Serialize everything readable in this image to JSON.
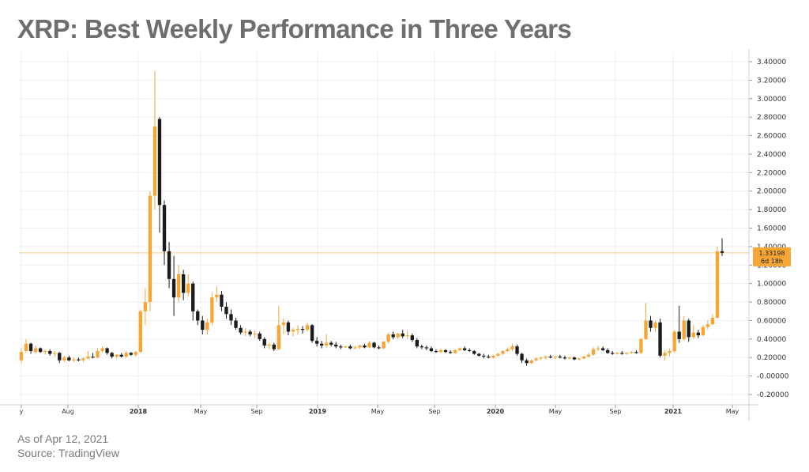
{
  "title": "XRP: Best Weekly Performance in Three Years",
  "footer": {
    "date_note": "As of Apr 12, 2021",
    "source_note": "Source: TradingView"
  },
  "colors": {
    "up": "#f7a535",
    "down": "#1b1b1b",
    "grid": "#efefef",
    "price_line": "#f7a535",
    "price_tag": "#f7a535",
    "title": "#6e6e6e"
  },
  "chart_data": {
    "type": "candlestick",
    "title": "XRP: Best Weekly Performance in Three Years",
    "timeframe": "weekly",
    "ylim": [
      -0.25,
      3.5
    ],
    "y_ticks": [
      "3.40000",
      "3.20000",
      "3.00000",
      "2.80000",
      "2.60000",
      "2.40000",
      "2.20000",
      "2.00000",
      "1.80000",
      "1.60000",
      "1.40000",
      "1.20000",
      "1.00000",
      "0.80000",
      "0.60000",
      "0.40000",
      "0.20000",
      "-0.00000",
      "-0.20000"
    ],
    "x_ticks": [
      {
        "label": "y",
        "bold": false
      },
      {
        "label": "Aug",
        "bold": false
      },
      {
        "label": "2018",
        "bold": true
      },
      {
        "label": "May",
        "bold": false
      },
      {
        "label": "Sep",
        "bold": false
      },
      {
        "label": "2019",
        "bold": true
      },
      {
        "label": "May",
        "bold": false
      },
      {
        "label": "Sep",
        "bold": false
      },
      {
        "label": "2020",
        "bold": true
      },
      {
        "label": "May",
        "bold": false
      },
      {
        "label": "Sep",
        "bold": false
      },
      {
        "label": "2021",
        "bold": true
      },
      {
        "label": "May",
        "bold": false
      }
    ],
    "last_price": {
      "value": 1.33198,
      "label": "1.33198",
      "countdown": "6d 18h"
    },
    "grid": true,
    "candles": [
      {
        "o": 0.17,
        "h": 0.3,
        "l": 0.14,
        "c": 0.26
      },
      {
        "o": 0.27,
        "h": 0.4,
        "l": 0.25,
        "c": 0.35
      },
      {
        "o": 0.35,
        "h": 0.36,
        "l": 0.24,
        "c": 0.27
      },
      {
        "o": 0.26,
        "h": 0.33,
        "l": 0.24,
        "c": 0.3
      },
      {
        "o": 0.3,
        "h": 0.31,
        "l": 0.25,
        "c": 0.26
      },
      {
        "o": 0.26,
        "h": 0.29,
        "l": 0.23,
        "c": 0.27
      },
      {
        "o": 0.27,
        "h": 0.29,
        "l": 0.22,
        "c": 0.24
      },
      {
        "o": 0.24,
        "h": 0.27,
        "l": 0.21,
        "c": 0.25
      },
      {
        "o": 0.25,
        "h": 0.26,
        "l": 0.14,
        "c": 0.17
      },
      {
        "o": 0.17,
        "h": 0.22,
        "l": 0.15,
        "c": 0.2
      },
      {
        "o": 0.2,
        "h": 0.22,
        "l": 0.16,
        "c": 0.17
      },
      {
        "o": 0.17,
        "h": 0.2,
        "l": 0.15,
        "c": 0.18
      },
      {
        "o": 0.18,
        "h": 0.2,
        "l": 0.16,
        "c": 0.17
      },
      {
        "o": 0.17,
        "h": 0.2,
        "l": 0.15,
        "c": 0.19
      },
      {
        "o": 0.19,
        "h": 0.27,
        "l": 0.18,
        "c": 0.21
      },
      {
        "o": 0.21,
        "h": 0.25,
        "l": 0.19,
        "c": 0.2
      },
      {
        "o": 0.2,
        "h": 0.3,
        "l": 0.19,
        "c": 0.27
      },
      {
        "o": 0.27,
        "h": 0.32,
        "l": 0.25,
        "c": 0.3
      },
      {
        "o": 0.3,
        "h": 0.31,
        "l": 0.23,
        "c": 0.25
      },
      {
        "o": 0.25,
        "h": 0.26,
        "l": 0.19,
        "c": 0.21
      },
      {
        "o": 0.21,
        "h": 0.24,
        "l": 0.19,
        "c": 0.23
      },
      {
        "o": 0.23,
        "h": 0.25,
        "l": 0.2,
        "c": 0.21
      },
      {
        "o": 0.21,
        "h": 0.27,
        "l": 0.2,
        "c": 0.25
      },
      {
        "o": 0.25,
        "h": 0.26,
        "l": 0.22,
        "c": 0.23
      },
      {
        "o": 0.23,
        "h": 0.27,
        "l": 0.21,
        "c": 0.26
      },
      {
        "o": 0.26,
        "h": 0.72,
        "l": 0.25,
        "c": 0.7
      },
      {
        "o": 0.7,
        "h": 0.95,
        "l": 0.55,
        "c": 0.8
      },
      {
        "o": 0.8,
        "h": 2.0,
        "l": 0.7,
        "c": 1.95
      },
      {
        "o": 1.95,
        "h": 3.3,
        "l": 1.8,
        "c": 2.7
      },
      {
        "o": 2.78,
        "h": 2.8,
        "l": 1.55,
        "c": 1.85
      },
      {
        "o": 1.85,
        "h": 1.9,
        "l": 1.2,
        "c": 1.35
      },
      {
        "o": 1.35,
        "h": 1.45,
        "l": 0.95,
        "c": 1.05
      },
      {
        "o": 1.05,
        "h": 1.3,
        "l": 0.65,
        "c": 0.85
      },
      {
        "o": 0.85,
        "h": 1.2,
        "l": 0.8,
        "c": 1.1
      },
      {
        "o": 1.1,
        "h": 1.15,
        "l": 0.82,
        "c": 0.9
      },
      {
        "o": 0.9,
        "h": 1.1,
        "l": 0.86,
        "c": 1.0
      },
      {
        "o": 1.0,
        "h": 1.02,
        "l": 0.6,
        "c": 0.7
      },
      {
        "o": 0.7,
        "h": 0.72,
        "l": 0.55,
        "c": 0.6
      },
      {
        "o": 0.6,
        "h": 0.65,
        "l": 0.45,
        "c": 0.5
      },
      {
        "o": 0.5,
        "h": 0.62,
        "l": 0.45,
        "c": 0.58
      },
      {
        "o": 0.58,
        "h": 0.9,
        "l": 0.55,
        "c": 0.85
      },
      {
        "o": 0.85,
        "h": 0.97,
        "l": 0.8,
        "c": 0.88
      },
      {
        "o": 0.88,
        "h": 0.92,
        "l": 0.7,
        "c": 0.75
      },
      {
        "o": 0.75,
        "h": 0.8,
        "l": 0.62,
        "c": 0.67
      },
      {
        "o": 0.67,
        "h": 0.72,
        "l": 0.55,
        "c": 0.6
      },
      {
        "o": 0.6,
        "h": 0.63,
        "l": 0.5,
        "c": 0.52
      },
      {
        "o": 0.52,
        "h": 0.55,
        "l": 0.45,
        "c": 0.47
      },
      {
        "o": 0.47,
        "h": 0.52,
        "l": 0.43,
        "c": 0.48
      },
      {
        "o": 0.48,
        "h": 0.5,
        "l": 0.43,
        "c": 0.45
      },
      {
        "o": 0.45,
        "h": 0.49,
        "l": 0.41,
        "c": 0.46
      },
      {
        "o": 0.46,
        "h": 0.48,
        "l": 0.38,
        "c": 0.4
      },
      {
        "o": 0.4,
        "h": 0.42,
        "l": 0.3,
        "c": 0.33
      },
      {
        "o": 0.33,
        "h": 0.36,
        "l": 0.29,
        "c": 0.34
      },
      {
        "o": 0.34,
        "h": 0.36,
        "l": 0.27,
        "c": 0.29
      },
      {
        "o": 0.29,
        "h": 0.76,
        "l": 0.28,
        "c": 0.55
      },
      {
        "o": 0.55,
        "h": 0.62,
        "l": 0.45,
        "c": 0.58
      },
      {
        "o": 0.58,
        "h": 0.6,
        "l": 0.44,
        "c": 0.48
      },
      {
        "o": 0.48,
        "h": 0.52,
        "l": 0.43,
        "c": 0.5
      },
      {
        "o": 0.5,
        "h": 0.55,
        "l": 0.45,
        "c": 0.51
      },
      {
        "o": 0.51,
        "h": 0.54,
        "l": 0.46,
        "c": 0.5
      },
      {
        "o": 0.5,
        "h": 0.58,
        "l": 0.48,
        "c": 0.55
      },
      {
        "o": 0.55,
        "h": 0.56,
        "l": 0.36,
        "c": 0.38
      },
      {
        "o": 0.38,
        "h": 0.42,
        "l": 0.32,
        "c": 0.35
      },
      {
        "o": 0.35,
        "h": 0.38,
        "l": 0.3,
        "c": 0.33
      },
      {
        "o": 0.33,
        "h": 0.45,
        "l": 0.3,
        "c": 0.36
      },
      {
        "o": 0.36,
        "h": 0.38,
        "l": 0.32,
        "c": 0.34
      },
      {
        "o": 0.34,
        "h": 0.37,
        "l": 0.3,
        "c": 0.32
      },
      {
        "o": 0.32,
        "h": 0.34,
        "l": 0.29,
        "c": 0.31
      },
      {
        "o": 0.31,
        "h": 0.33,
        "l": 0.3,
        "c": 0.32
      },
      {
        "o": 0.32,
        "h": 0.34,
        "l": 0.29,
        "c": 0.3
      },
      {
        "o": 0.3,
        "h": 0.33,
        "l": 0.29,
        "c": 0.31
      },
      {
        "o": 0.31,
        "h": 0.34,
        "l": 0.29,
        "c": 0.33
      },
      {
        "o": 0.33,
        "h": 0.35,
        "l": 0.3,
        "c": 0.31
      },
      {
        "o": 0.31,
        "h": 0.38,
        "l": 0.3,
        "c": 0.36
      },
      {
        "o": 0.36,
        "h": 0.37,
        "l": 0.3,
        "c": 0.31
      },
      {
        "o": 0.31,
        "h": 0.33,
        "l": 0.29,
        "c": 0.3
      },
      {
        "o": 0.3,
        "h": 0.38,
        "l": 0.29,
        "c": 0.37
      },
      {
        "o": 0.37,
        "h": 0.47,
        "l": 0.35,
        "c": 0.45
      },
      {
        "o": 0.45,
        "h": 0.48,
        "l": 0.4,
        "c": 0.42
      },
      {
        "o": 0.42,
        "h": 0.47,
        "l": 0.4,
        "c": 0.46
      },
      {
        "o": 0.46,
        "h": 0.5,
        "l": 0.41,
        "c": 0.43
      },
      {
        "o": 0.43,
        "h": 0.49,
        "l": 0.4,
        "c": 0.44
      },
      {
        "o": 0.44,
        "h": 0.46,
        "l": 0.37,
        "c": 0.39
      },
      {
        "o": 0.39,
        "h": 0.41,
        "l": 0.3,
        "c": 0.32
      },
      {
        "o": 0.32,
        "h": 0.34,
        "l": 0.29,
        "c": 0.31
      },
      {
        "o": 0.31,
        "h": 0.33,
        "l": 0.28,
        "c": 0.3
      },
      {
        "o": 0.3,
        "h": 0.32,
        "l": 0.26,
        "c": 0.27
      },
      {
        "o": 0.27,
        "h": 0.29,
        "l": 0.25,
        "c": 0.26
      },
      {
        "o": 0.26,
        "h": 0.3,
        "l": 0.25,
        "c": 0.28
      },
      {
        "o": 0.28,
        "h": 0.29,
        "l": 0.25,
        "c": 0.26
      },
      {
        "o": 0.26,
        "h": 0.28,
        "l": 0.24,
        "c": 0.25
      },
      {
        "o": 0.25,
        "h": 0.29,
        "l": 0.24,
        "c": 0.28
      },
      {
        "o": 0.28,
        "h": 0.31,
        "l": 0.27,
        "c": 0.3
      },
      {
        "o": 0.3,
        "h": 0.32,
        "l": 0.27,
        "c": 0.28
      },
      {
        "o": 0.28,
        "h": 0.3,
        "l": 0.26,
        "c": 0.27
      },
      {
        "o": 0.27,
        "h": 0.28,
        "l": 0.23,
        "c": 0.24
      },
      {
        "o": 0.24,
        "h": 0.25,
        "l": 0.21,
        "c": 0.22
      },
      {
        "o": 0.22,
        "h": 0.24,
        "l": 0.19,
        "c": 0.21
      },
      {
        "o": 0.21,
        "h": 0.23,
        "l": 0.19,
        "c": 0.2
      },
      {
        "o": 0.2,
        "h": 0.23,
        "l": 0.19,
        "c": 0.22
      },
      {
        "o": 0.22,
        "h": 0.25,
        "l": 0.21,
        "c": 0.24
      },
      {
        "o": 0.24,
        "h": 0.28,
        "l": 0.23,
        "c": 0.27
      },
      {
        "o": 0.27,
        "h": 0.31,
        "l": 0.26,
        "c": 0.29
      },
      {
        "o": 0.29,
        "h": 0.35,
        "l": 0.27,
        "c": 0.32
      },
      {
        "o": 0.32,
        "h": 0.34,
        "l": 0.22,
        "c": 0.24
      },
      {
        "o": 0.24,
        "h": 0.25,
        "l": 0.14,
        "c": 0.17
      },
      {
        "o": 0.17,
        "h": 0.19,
        "l": 0.11,
        "c": 0.14
      },
      {
        "o": 0.14,
        "h": 0.18,
        "l": 0.13,
        "c": 0.17
      },
      {
        "o": 0.17,
        "h": 0.2,
        "l": 0.16,
        "c": 0.19
      },
      {
        "o": 0.19,
        "h": 0.21,
        "l": 0.17,
        "c": 0.2
      },
      {
        "o": 0.2,
        "h": 0.22,
        "l": 0.18,
        "c": 0.21
      },
      {
        "o": 0.21,
        "h": 0.23,
        "l": 0.19,
        "c": 0.2
      },
      {
        "o": 0.2,
        "h": 0.22,
        "l": 0.18,
        "c": 0.21
      },
      {
        "o": 0.21,
        "h": 0.23,
        "l": 0.19,
        "c": 0.2
      },
      {
        "o": 0.2,
        "h": 0.22,
        "l": 0.18,
        "c": 0.19
      },
      {
        "o": 0.19,
        "h": 0.21,
        "l": 0.18,
        "c": 0.2
      },
      {
        "o": 0.2,
        "h": 0.21,
        "l": 0.17,
        "c": 0.18
      },
      {
        "o": 0.18,
        "h": 0.2,
        "l": 0.17,
        "c": 0.19
      },
      {
        "o": 0.19,
        "h": 0.22,
        "l": 0.18,
        "c": 0.21
      },
      {
        "o": 0.21,
        "h": 0.25,
        "l": 0.2,
        "c": 0.23
      },
      {
        "o": 0.23,
        "h": 0.31,
        "l": 0.22,
        "c": 0.29
      },
      {
        "o": 0.29,
        "h": 0.33,
        "l": 0.27,
        "c": 0.3
      },
      {
        "o": 0.3,
        "h": 0.32,
        "l": 0.27,
        "c": 0.28
      },
      {
        "o": 0.28,
        "h": 0.3,
        "l": 0.24,
        "c": 0.25
      },
      {
        "o": 0.25,
        "h": 0.27,
        "l": 0.23,
        "c": 0.24
      },
      {
        "o": 0.24,
        "h": 0.26,
        "l": 0.23,
        "c": 0.25
      },
      {
        "o": 0.25,
        "h": 0.27,
        "l": 0.23,
        "c": 0.24
      },
      {
        "o": 0.24,
        "h": 0.26,
        "l": 0.23,
        "c": 0.25
      },
      {
        "o": 0.25,
        "h": 0.27,
        "l": 0.24,
        "c": 0.26
      },
      {
        "o": 0.26,
        "h": 0.28,
        "l": 0.24,
        "c": 0.25
      },
      {
        "o": 0.25,
        "h": 0.41,
        "l": 0.24,
        "c": 0.4
      },
      {
        "o": 0.4,
        "h": 0.79,
        "l": 0.39,
        "c": 0.6
      },
      {
        "o": 0.6,
        "h": 0.65,
        "l": 0.48,
        "c": 0.52
      },
      {
        "o": 0.52,
        "h": 0.6,
        "l": 0.48,
        "c": 0.58
      },
      {
        "o": 0.58,
        "h": 0.62,
        "l": 0.2,
        "c": 0.22
      },
      {
        "o": 0.22,
        "h": 0.28,
        "l": 0.17,
        "c": 0.25
      },
      {
        "o": 0.25,
        "h": 0.3,
        "l": 0.21,
        "c": 0.27
      },
      {
        "o": 0.27,
        "h": 0.5,
        "l": 0.25,
        "c": 0.48
      },
      {
        "o": 0.48,
        "h": 0.76,
        "l": 0.36,
        "c": 0.4
      },
      {
        "o": 0.4,
        "h": 0.65,
        "l": 0.38,
        "c": 0.6
      },
      {
        "o": 0.6,
        "h": 0.62,
        "l": 0.37,
        "c": 0.42
      },
      {
        "o": 0.42,
        "h": 0.55,
        "l": 0.4,
        "c": 0.47
      },
      {
        "o": 0.47,
        "h": 0.5,
        "l": 0.41,
        "c": 0.44
      },
      {
        "o": 0.44,
        "h": 0.55,
        "l": 0.43,
        "c": 0.53
      },
      {
        "o": 0.53,
        "h": 0.6,
        "l": 0.5,
        "c": 0.56
      },
      {
        "o": 0.56,
        "h": 0.67,
        "l": 0.55,
        "c": 0.63
      },
      {
        "o": 0.63,
        "h": 1.4,
        "l": 0.62,
        "c": 1.35
      },
      {
        "o": 1.35,
        "h": 1.49,
        "l": 1.3,
        "c": 1.33198
      }
    ]
  }
}
